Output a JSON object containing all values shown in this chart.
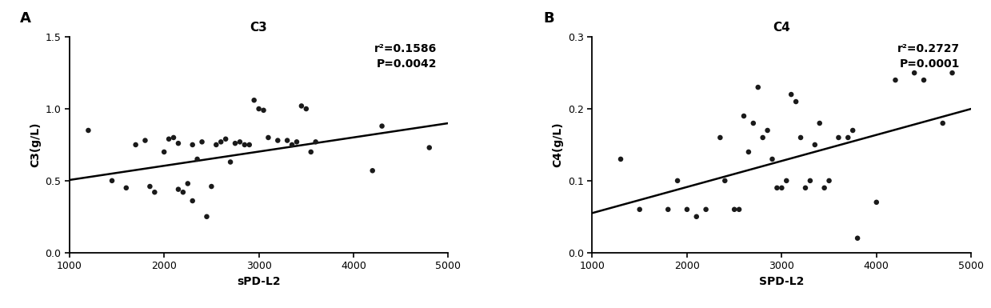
{
  "panel_A": {
    "title": "C3",
    "xlabel": "sPD-L2",
    "ylabel": "C3(g/L)",
    "panel_label": "A",
    "r2": "r²=0.1586",
    "pval": "P=0.0042",
    "xlim": [
      1000,
      5000
    ],
    "ylim": [
      0.0,
      1.5
    ],
    "xticks": [
      1000,
      2000,
      3000,
      4000,
      5000
    ],
    "yticks": [
      0.0,
      0.5,
      1.0,
      1.5
    ],
    "scatter_x": [
      1200,
      1450,
      1600,
      1700,
      1800,
      1850,
      1900,
      2000,
      2050,
      2100,
      2150,
      2150,
      2200,
      2250,
      2300,
      2300,
      2350,
      2400,
      2450,
      2500,
      2550,
      2600,
      2650,
      2700,
      2750,
      2800,
      2850,
      2900,
      2950,
      3000,
      3050,
      3100,
      3200,
      3300,
      3350,
      3400,
      3450,
      3500,
      3550,
      3600,
      4200,
      4300,
      4800
    ],
    "scatter_y": [
      0.85,
      0.5,
      0.45,
      0.75,
      0.78,
      0.46,
      0.42,
      0.7,
      0.79,
      0.8,
      0.44,
      0.76,
      0.42,
      0.48,
      0.75,
      0.36,
      0.65,
      0.77,
      0.25,
      0.46,
      0.75,
      0.77,
      0.79,
      0.63,
      0.76,
      0.77,
      0.75,
      0.75,
      1.06,
      1.0,
      0.99,
      0.8,
      0.78,
      0.78,
      0.75,
      0.77,
      1.02,
      1.0,
      0.7,
      0.77,
      0.57,
      0.88,
      0.73
    ],
    "line_x": [
      1000,
      5000
    ],
    "line_y": [
      0.505,
      0.9
    ]
  },
  "panel_B": {
    "title": "C4",
    "xlabel": "SPD-L2",
    "ylabel": "C4(g/L)",
    "panel_label": "B",
    "r2": "r²=0.2727",
    "pval": "P=0.0001",
    "xlim": [
      1000,
      5000
    ],
    "ylim": [
      0.0,
      0.3
    ],
    "xticks": [
      1000,
      2000,
      3000,
      4000,
      5000
    ],
    "yticks": [
      0.0,
      0.1,
      0.2,
      0.3
    ],
    "scatter_x": [
      1300,
      1500,
      1800,
      1900,
      2000,
      2100,
      2200,
      2350,
      2400,
      2500,
      2550,
      2600,
      2650,
      2700,
      2750,
      2800,
      2850,
      2900,
      2950,
      3000,
      3050,
      3100,
      3150,
      3200,
      3250,
      3300,
      3350,
      3400,
      3450,
      3500,
      3600,
      3700,
      3750,
      3800,
      4000,
      4200,
      4400,
      4500,
      4700,
      4800
    ],
    "scatter_y": [
      0.13,
      0.06,
      0.06,
      0.1,
      0.06,
      0.05,
      0.06,
      0.16,
      0.1,
      0.06,
      0.06,
      0.19,
      0.14,
      0.18,
      0.23,
      0.16,
      0.17,
      0.13,
      0.09,
      0.09,
      0.1,
      0.22,
      0.21,
      0.16,
      0.09,
      0.1,
      0.15,
      0.18,
      0.09,
      0.1,
      0.16,
      0.16,
      0.17,
      0.02,
      0.07,
      0.24,
      0.25,
      0.24,
      0.18,
      0.25
    ],
    "line_x": [
      1000,
      5000
    ],
    "line_y": [
      0.055,
      0.2
    ]
  },
  "dot_color": "#1a1a1a",
  "line_color": "#000000",
  "background_color": "#ffffff",
  "title_fontsize": 11,
  "label_fontsize": 10,
  "tick_fontsize": 9,
  "annotation_fontsize": 10,
  "panel_label_fontsize": 13,
  "fig_width": 12.39,
  "fig_height": 3.85,
  "dpi": 100
}
